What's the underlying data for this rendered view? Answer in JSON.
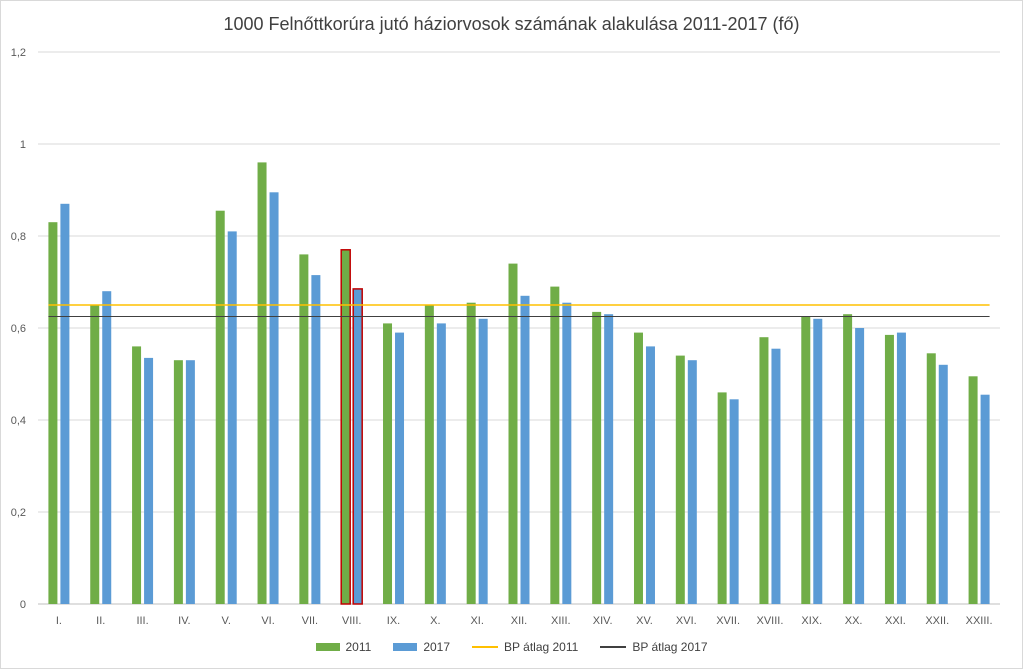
{
  "chart_data": {
    "type": "bar",
    "title": "1000 Felnőttkorúra jutó háziorvosok számának alakulása 2011-2017 (fő)",
    "categories": [
      "I.",
      "II.",
      "III.",
      "IV.",
      "V.",
      "VI.",
      "VII.",
      "VIII.",
      "IX.",
      "X.",
      "XI.",
      "XII.",
      "XIII.",
      "XIV.",
      "XV.",
      "XVI.",
      "XVII.",
      "XVIII.",
      "XIX.",
      "XX.",
      "XXI.",
      "XXII.",
      "XXIII."
    ],
    "series": [
      {
        "name": "2011",
        "color": "#70ad47",
        "values": [
          0.83,
          0.65,
          0.56,
          0.53,
          0.855,
          0.96,
          0.76,
          0.77,
          0.61,
          0.65,
          0.655,
          0.74,
          0.69,
          0.635,
          0.59,
          0.54,
          0.46,
          0.58,
          0.625,
          0.63,
          0.585,
          0.545,
          0.495
        ]
      },
      {
        "name": "2017",
        "color": "#5b9bd5",
        "values": [
          0.87,
          0.68,
          0.535,
          0.53,
          0.81,
          0.895,
          0.715,
          0.685,
          0.59,
          0.61,
          0.62,
          0.67,
          0.655,
          0.63,
          0.56,
          0.53,
          0.445,
          0.555,
          0.62,
          0.6,
          0.59,
          0.52,
          0.455
        ]
      }
    ],
    "reference_lines": [
      {
        "name": "BP átlag 2011",
        "value": 0.65,
        "color": "#ffc000"
      },
      {
        "name": "BP átlag 2017",
        "value": 0.625,
        "color": "#404040"
      }
    ],
    "highlight_category": "VIII.",
    "highlight_color": "#c00000",
    "yticks": [
      "0",
      "0,2",
      "0,4",
      "0,6",
      "0,8",
      "1",
      "1,2"
    ],
    "ylim": [
      0,
      1.2
    ],
    "grid": true,
    "legend_position": "bottom"
  }
}
